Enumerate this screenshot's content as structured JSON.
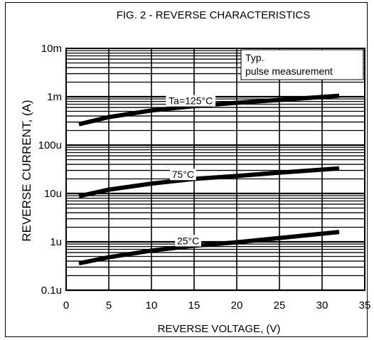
{
  "chart_data": {
    "type": "line",
    "title": "FIG. 2 - REVERSE CHARACTERISTICS",
    "xlabel": "REVERSE VOLTAGE, (V)",
    "ylabel": "REVERSE CURRENT, (A)",
    "xlim": [
      0,
      35
    ],
    "ylim": [
      1e-07,
      0.01
    ],
    "yscale": "log",
    "x_ticks": [
      0,
      5,
      10,
      15,
      20,
      25,
      30,
      35
    ],
    "x_tick_labels": [
      "0",
      "5",
      "10",
      "15",
      "20",
      "25",
      "30",
      "35"
    ],
    "y_ticks": [
      1e-07,
      1e-06,
      1e-05,
      0.0001,
      0.001,
      0.01
    ],
    "y_tick_labels": [
      "0.1u",
      "1u",
      "10u",
      "100u",
      "1m",
      "10m"
    ],
    "grid": true,
    "annotation": {
      "line1": "Typ.",
      "line2": "pulse measurement"
    },
    "series": [
      {
        "name": "Ta=125°C",
        "x": [
          1.5,
          5,
          10,
          15,
          20,
          25,
          32
        ],
        "y": [
          0.00027,
          0.00038,
          0.00052,
          0.00064,
          0.00075,
          0.00086,
          0.00105
        ]
      },
      {
        "name": "75°C",
        "x": [
          1.5,
          5,
          10,
          15,
          20,
          25,
          32
        ],
        "y": [
          8.8e-06,
          1.2e-05,
          1.6e-05,
          2e-05,
          2.3e-05,
          2.7e-05,
          3.3e-05
        ]
      },
      {
        "name": "25°C",
        "x": [
          1.5,
          5,
          10,
          15,
          20,
          25,
          32
        ],
        "y": [
          3.6e-07,
          4.8e-07,
          6.6e-07,
          8.3e-07,
          9.8e-07,
          1.2e-06,
          1.6e-06
        ]
      }
    ]
  }
}
